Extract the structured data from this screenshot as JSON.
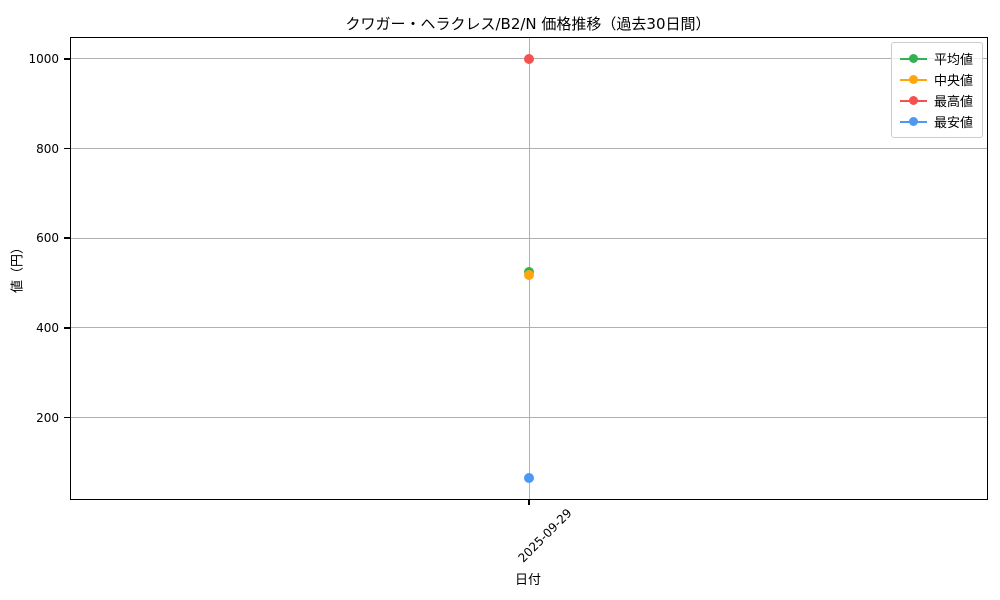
{
  "chart_data": {
    "type": "line",
    "title": "クワガー・ヘラクレス/B2/N 価格推移（過去30日間）",
    "xlabel": "日付",
    "ylabel": "値（円）",
    "x": [
      "2025-09-29"
    ],
    "series": [
      {
        "name": "平均値",
        "color": "#33b152",
        "values": [
          524
        ]
      },
      {
        "name": "中央値",
        "color": "#ffa60d",
        "values": [
          517
        ]
      },
      {
        "name": "最高値",
        "color": "#f45250",
        "values": [
          1000
        ]
      },
      {
        "name": "最安値",
        "color": "#4e97f3",
        "values": [
          65
        ]
      }
    ],
    "y_ticks": [
      200,
      400,
      600,
      800,
      1000
    ],
    "ylim": [
      18.25,
      1046.75
    ],
    "grid": true,
    "grid_color": "#b0b0b0",
    "legend_position": "upper right",
    "background": "#ffffff"
  }
}
